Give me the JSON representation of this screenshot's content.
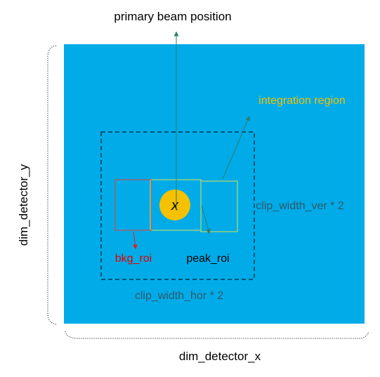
{
  "labels": {
    "primary_beam": "primary beam position",
    "integration_region": "integration region",
    "clip_width_ver": "clip_width_ver * 2",
    "clip_width_hor": "clip_width_hor * 2",
    "bkg_roi": "bkg_roi",
    "peak_roi": "peak_roi",
    "dim_detector_y": "dim_detector_y",
    "dim_detector_x": "dim_detector_x",
    "beam_marker": "x"
  },
  "colors": {
    "detector": "#00ABE8",
    "beam": "#F5C100",
    "roi_outline": "#E0E050",
    "bkg_outline": "#E8403A",
    "arrow_teal": "#2E7D6E",
    "arrow_red": "#E02020",
    "integration_text": "#F5C100",
    "clip_text": "#2F5A6A",
    "bkg_text": "#E00000",
    "black": "#000000"
  }
}
